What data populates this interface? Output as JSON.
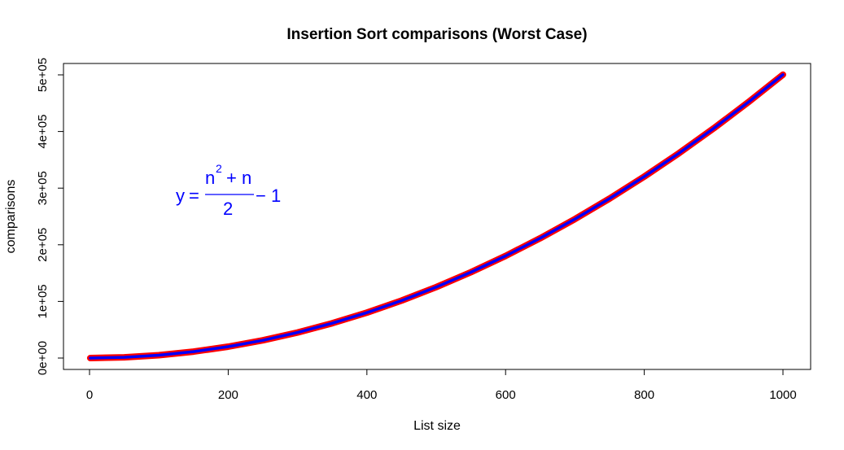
{
  "chart_data": {
    "type": "line",
    "title": "Insertion Sort comparisons (Worst Case)",
    "xlabel": "List size",
    "ylabel": "comparisons",
    "xlim": [
      0,
      1000
    ],
    "ylim": [
      0,
      500000
    ],
    "x_ticks": [
      0,
      200,
      400,
      600,
      800,
      1000
    ],
    "x_tick_labels": [
      "0",
      "200",
      "400",
      "600",
      "800",
      "1000"
    ],
    "y_ticks": [
      0,
      100000,
      200000,
      300000,
      400000,
      500000
    ],
    "y_tick_labels": [
      "0e+00",
      "1e+05",
      "2e+05",
      "3e+05",
      "4e+05",
      "5e+05"
    ],
    "grid": false,
    "formula": {
      "lhs": "y",
      "equals": "=",
      "numerator_base": "n",
      "numerator_exp": "2",
      "numerator_rest": "+ n",
      "denominator": "2",
      "tail": "− 1",
      "color": "#0000ff"
    },
    "series": [
      {
        "x": [
          1,
          50,
          100,
          150,
          200,
          250,
          300,
          350,
          400,
          450,
          500,
          550,
          600,
          650,
          700,
          750,
          800,
          850,
          900,
          950,
          1000
        ],
        "y": [
          0,
          1274,
          5049,
          11324,
          20099,
          31374,
          45149,
          61424,
          80199,
          101474,
          125249,
          151524,
          180299,
          211574,
          245349,
          281624,
          320399,
          361674,
          405449,
          451724,
          500499
        ],
        "color_outer": "#ff0000",
        "color_inner": "#0000ff"
      }
    ]
  }
}
